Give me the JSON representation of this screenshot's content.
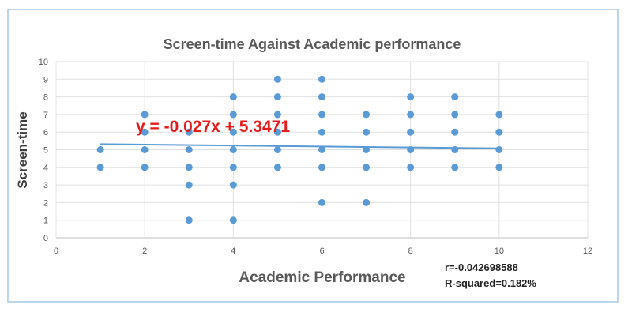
{
  "chart_data": {
    "type": "scatter",
    "title": "Screen-time Against Academic performance",
    "xlabel": "Academic Performance",
    "ylabel": "Screen-time",
    "xlim": [
      0,
      12
    ],
    "ylim": [
      0,
      10
    ],
    "xticks": [
      0,
      2,
      4,
      6,
      8,
      10,
      12
    ],
    "yticks": [
      0,
      1,
      2,
      3,
      4,
      5,
      6,
      7,
      8,
      9,
      10
    ],
    "grid": true,
    "series": [
      {
        "name": "Screen-time",
        "color": "#5b9bd5",
        "points": [
          [
            1,
            4
          ],
          [
            1,
            5
          ],
          [
            2,
            4
          ],
          [
            2,
            5
          ],
          [
            2,
            6
          ],
          [
            2,
            7
          ],
          [
            3,
            1
          ],
          [
            3,
            3
          ],
          [
            3,
            4
          ],
          [
            3,
            5
          ],
          [
            3,
            6
          ],
          [
            4,
            1
          ],
          [
            4,
            3
          ],
          [
            4,
            4
          ],
          [
            4,
            5
          ],
          [
            4,
            6
          ],
          [
            4,
            7
          ],
          [
            4,
            8
          ],
          [
            5,
            4
          ],
          [
            5,
            5
          ],
          [
            5,
            6
          ],
          [
            5,
            7
          ],
          [
            5,
            8
          ],
          [
            5,
            9
          ],
          [
            6,
            2
          ],
          [
            6,
            4
          ],
          [
            6,
            5
          ],
          [
            6,
            6
          ],
          [
            6,
            7
          ],
          [
            6,
            8
          ],
          [
            6,
            9
          ],
          [
            7,
            2
          ],
          [
            7,
            4
          ],
          [
            7,
            5
          ],
          [
            7,
            6
          ],
          [
            7,
            7
          ],
          [
            8,
            4
          ],
          [
            8,
            5
          ],
          [
            8,
            6
          ],
          [
            8,
            7
          ],
          [
            8,
            8
          ],
          [
            9,
            4
          ],
          [
            9,
            5
          ],
          [
            9,
            6
          ],
          [
            9,
            7
          ],
          [
            9,
            8
          ],
          [
            10,
            4
          ],
          [
            10,
            5
          ],
          [
            10,
            6
          ],
          [
            10,
            7
          ]
        ]
      }
    ],
    "trendline": {
      "slope": -0.027,
      "intercept": 5.3471,
      "x_range": [
        1,
        10
      ],
      "color": "#5b9bd5"
    },
    "annotations": {
      "equation": "y = -0.027x + 5.3471",
      "equation_color": "#e31b1b",
      "r": "r=-0.042698588",
      "r_squared": "R-squared=0.182%"
    }
  }
}
